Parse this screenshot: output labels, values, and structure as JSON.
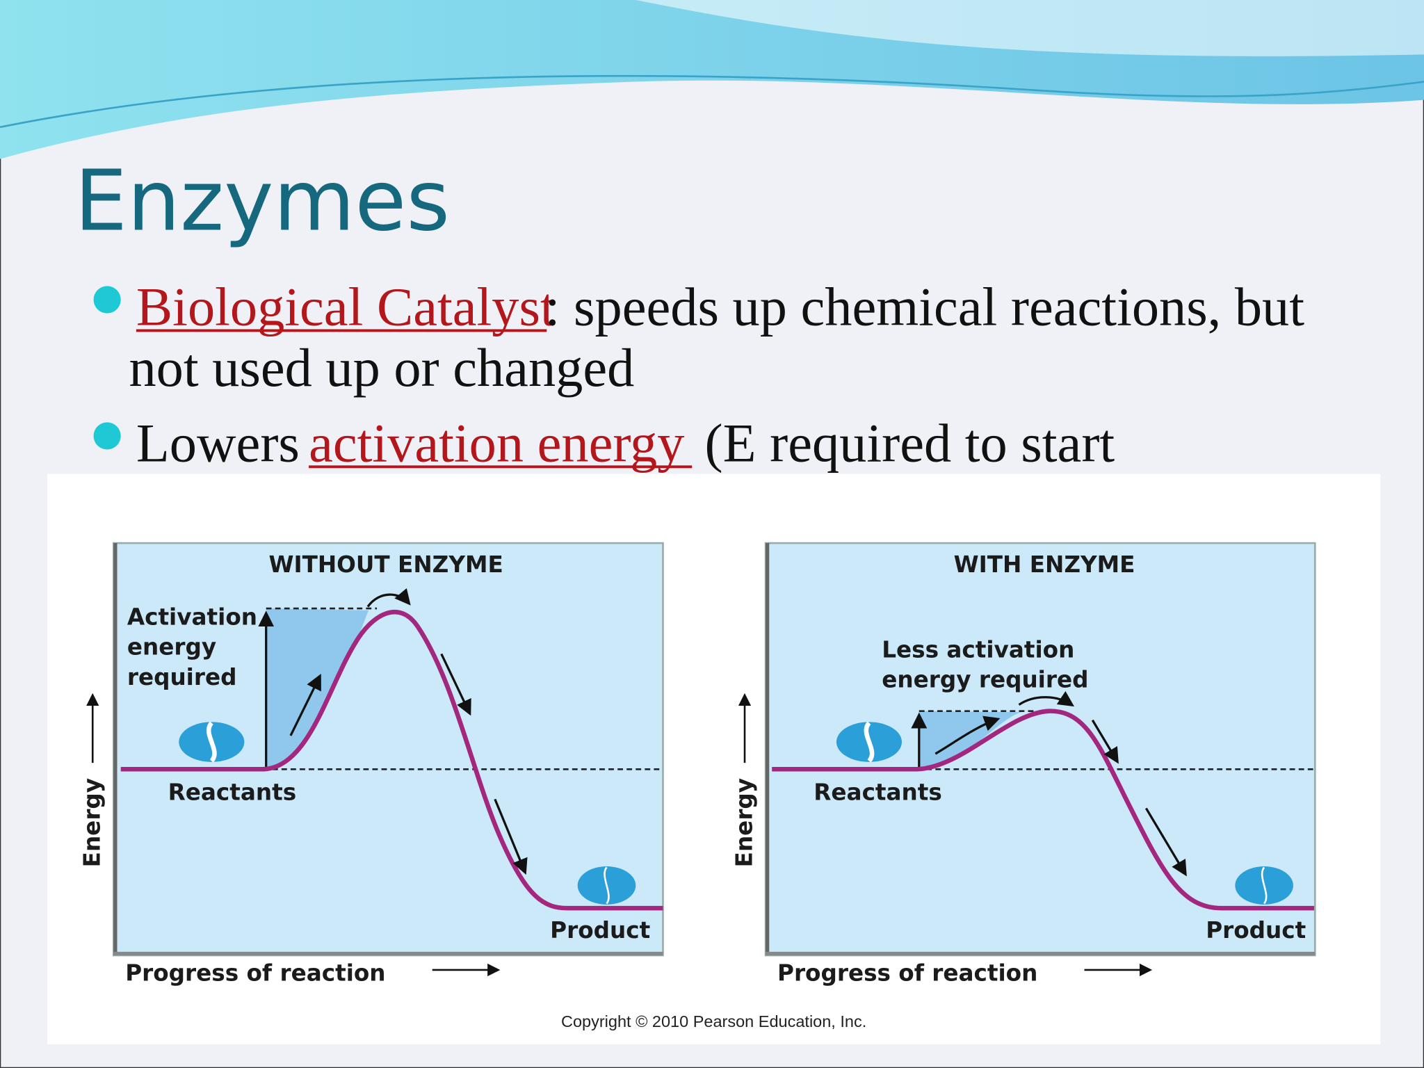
{
  "title": "Enzymes",
  "bullets": [
    {
      "term": "Biological Catalyst",
      "text": ": speeds up chemical reactions, but",
      "continuation": "not used up or changed"
    },
    {
      "lead": "Lowers",
      "term": "activation energy",
      "text": "(E required to start"
    }
  ],
  "figure": {
    "panels": [
      {
        "title": "WITHOUT ENZYME",
        "annotation": [
          "Activation",
          "energy",
          "required"
        ],
        "reactants": "Reactants",
        "product": "Product",
        "y_axis": "Energy",
        "x_axis": "Progress of reaction"
      },
      {
        "title": "WITH ENZYME",
        "annotation": [
          "Less activation",
          "energy required"
        ],
        "reactants": "Reactants",
        "product": "Product",
        "y_axis": "Energy",
        "x_axis": "Progress of reaction"
      }
    ],
    "copyright": "Copyright © 2010 Pearson Education, Inc."
  }
}
